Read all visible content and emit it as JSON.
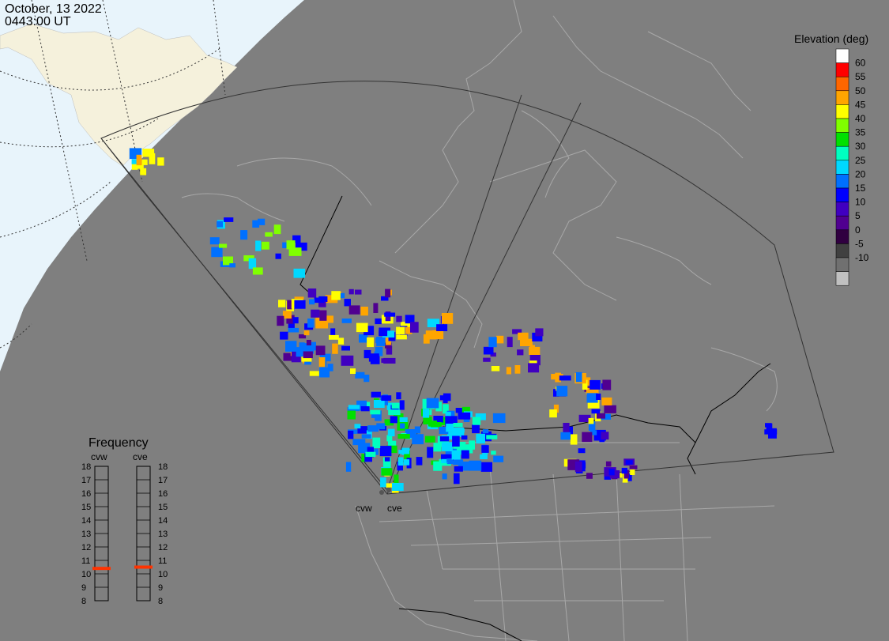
{
  "header": {
    "date": "October, 13 2022",
    "time": "0443:00 UT"
  },
  "colorbar": {
    "title": "Elevation (deg)",
    "ticks": [
      "60",
      "55",
      "50",
      "45",
      "40",
      "35",
      "30",
      "25",
      "20",
      "15",
      "10",
      "5",
      "0",
      "-5",
      "-10"
    ],
    "colors": [
      "#ffffff",
      "#ff0000",
      "#ff6600",
      "#ffa500",
      "#ffff00",
      "#80ff00",
      "#00e000",
      "#00ffc0",
      "#00d8ff",
      "#0070ff",
      "#0000ff",
      "#4000c0",
      "#500090",
      "#300040",
      "#404040",
      "#707070",
      "#c0c0c0"
    ]
  },
  "frequency": {
    "title": "Frequency",
    "radars": [
      "cvw",
      "cve"
    ],
    "values_mhz": [
      10.4,
      10.5
    ],
    "marker_color": "#ff3300",
    "scale": [
      "18",
      "17",
      "16",
      "15",
      "14",
      "13",
      "12",
      "11",
      "10",
      "9",
      "8"
    ]
  },
  "radar_labels": [
    "cvw",
    "cve"
  ],
  "colors": {
    "land_lines": "#a8a8a8",
    "border_lines": "#000000",
    "sunlit_region": "#e8f4fb",
    "fov_outline": "#333333"
  }
}
